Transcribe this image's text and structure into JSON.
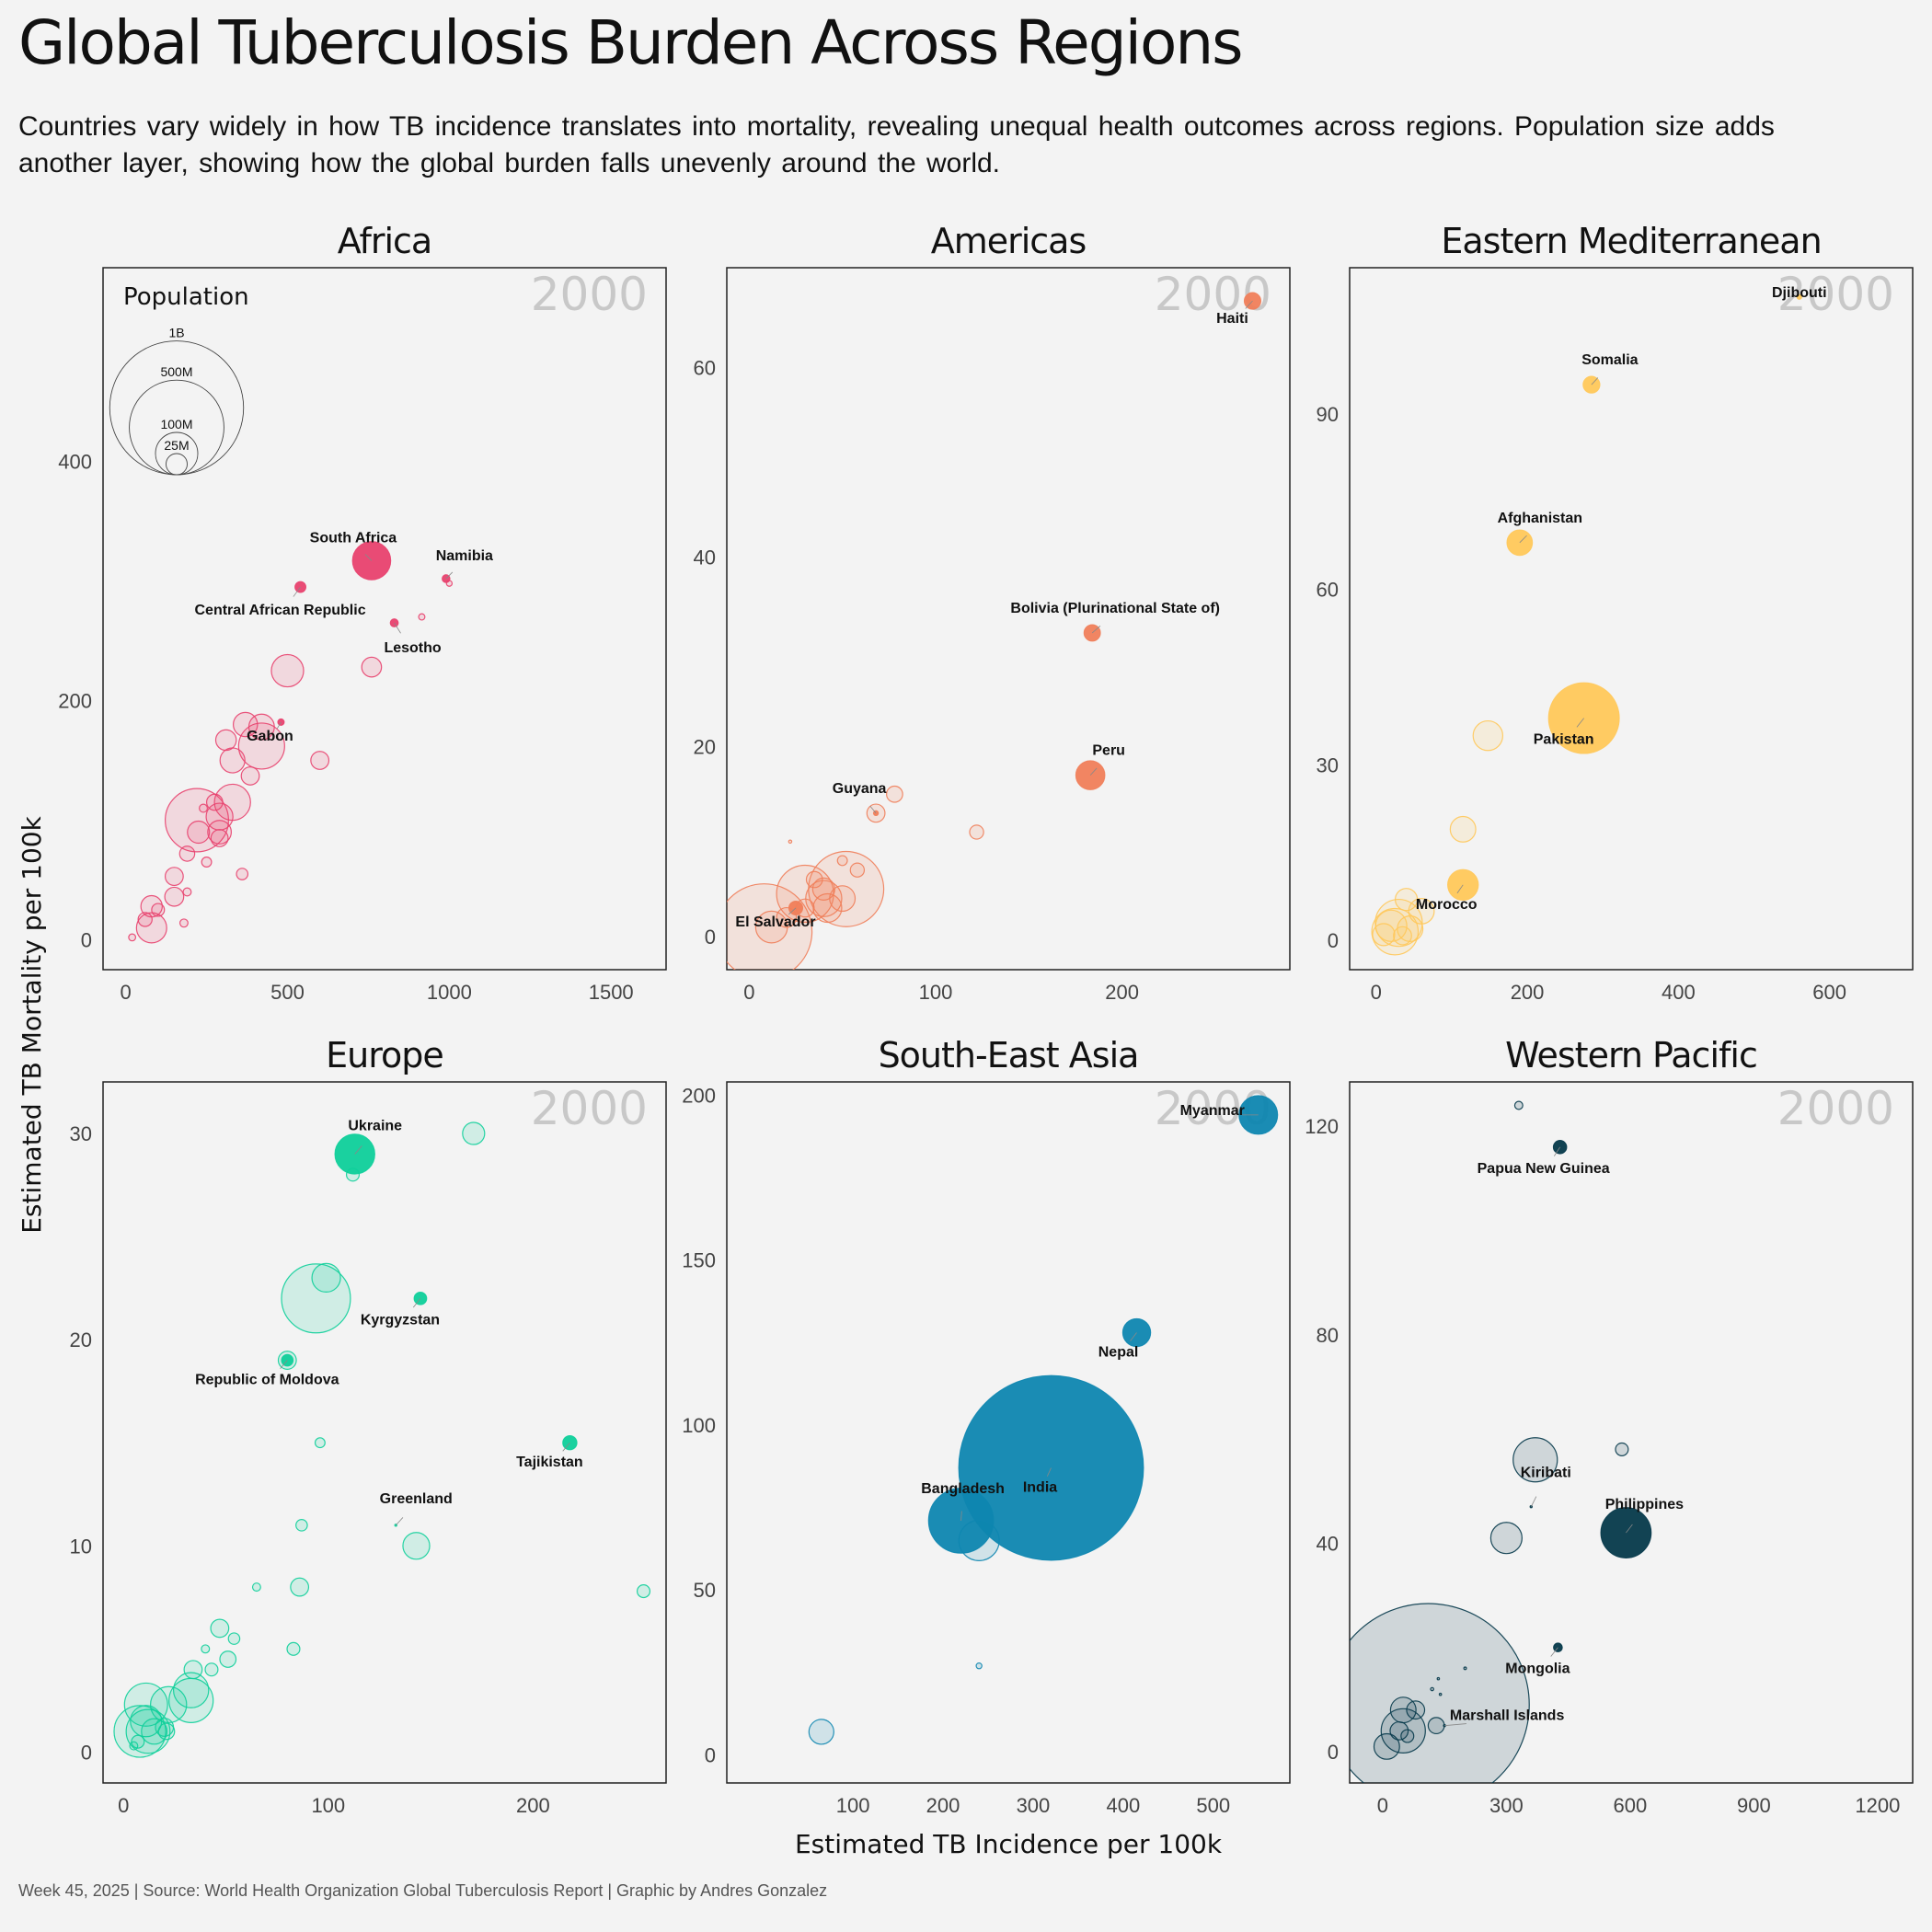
{
  "header": {
    "title": "Global Tuberculosis Burden Across Regions",
    "subtitle": "Countries vary widely in how TB incidence translates into mortality, revealing unequal health outcomes across regions. Population size adds another layer, showing how the global burden falls unevenly around the world."
  },
  "caption": "Week 45, 2025 | Source: World Health Organization Global Tuberculosis Report | Graphic by Andres Gonzalez",
  "chart_data": {
    "type": "scatter",
    "xlabel": "Estimated TB Incidence per 100k",
    "ylabel": "Estimated TB Mortality per 100k",
    "year_label": "2000",
    "legend": {
      "title": "Population",
      "entries": [
        {
          "label": "1B",
          "value": 1000
        },
        {
          "label": "500M",
          "value": 500
        },
        {
          "label": "100M",
          "value": 100
        },
        {
          "label": "25M",
          "value": 25
        }
      ]
    },
    "panels": [
      {
        "name": "Africa",
        "color": "#e8416e",
        "xlim": [
          -70,
          1670
        ],
        "ylim": [
          -25,
          562
        ],
        "xticks": [
          0,
          500,
          1000,
          1500
        ],
        "yticks": [
          0,
          200,
          400
        ],
        "points": [
          {
            "x": 760,
            "y": 317,
            "pop": 45,
            "label": "South Africa",
            "hi": true
          },
          {
            "x": 990,
            "y": 302,
            "pop": 1.9,
            "label": "Namibia",
            "hi": true
          },
          {
            "x": 540,
            "y": 295,
            "pop": 3.7,
            "label": "Central African Republic",
            "hi": true
          },
          {
            "x": 830,
            "y": 265,
            "pop": 2,
            "label": "Lesotho",
            "hi": true
          },
          {
            "x": 480,
            "y": 182,
            "pop": 1.3,
            "label": "Gabon",
            "hi": true
          },
          {
            "x": 1000,
            "y": 298,
            "pop": 1
          },
          {
            "x": 915,
            "y": 270,
            "pop": 1.2
          },
          {
            "x": 760,
            "y": 228,
            "pop": 12
          },
          {
            "x": 500,
            "y": 225,
            "pop": 32
          },
          {
            "x": 420,
            "y": 178,
            "pop": 20
          },
          {
            "x": 370,
            "y": 180,
            "pop": 18
          },
          {
            "x": 420,
            "y": 162,
            "pop": 65
          },
          {
            "x": 310,
            "y": 167,
            "pop": 13
          },
          {
            "x": 330,
            "y": 150,
            "pop": 19
          },
          {
            "x": 600,
            "y": 150,
            "pop": 10
          },
          {
            "x": 385,
            "y": 137,
            "pop": 10
          },
          {
            "x": 275,
            "y": 115,
            "pop": 8
          },
          {
            "x": 330,
            "y": 115,
            "pop": 40
          },
          {
            "x": 290,
            "y": 103,
            "pop": 22
          },
          {
            "x": 220,
            "y": 100,
            "pop": 123
          },
          {
            "x": 290,
            "y": 90,
            "pop": 17
          },
          {
            "x": 290,
            "y": 85,
            "pop": 9
          },
          {
            "x": 225,
            "y": 90,
            "pop": 15
          },
          {
            "x": 240,
            "y": 110,
            "pop": 2
          },
          {
            "x": 190,
            "y": 72,
            "pop": 7
          },
          {
            "x": 250,
            "y": 65,
            "pop": 3
          },
          {
            "x": 360,
            "y": 55,
            "pop": 4
          },
          {
            "x": 150,
            "y": 53,
            "pop": 10
          },
          {
            "x": 190,
            "y": 40,
            "pop": 2
          },
          {
            "x": 150,
            "y": 36,
            "pop": 11
          },
          {
            "x": 80,
            "y": 28,
            "pop": 14
          },
          {
            "x": 100,
            "y": 25,
            "pop": 5
          },
          {
            "x": 60,
            "y": 17,
            "pop": 6
          },
          {
            "x": 80,
            "y": 10,
            "pop": 28
          },
          {
            "x": 180,
            "y": 14,
            "pop": 2
          },
          {
            "x": 20,
            "y": 2,
            "pop": 1.5
          }
        ]
      },
      {
        "name": "Americas",
        "color": "#f07e5a",
        "xlim": [
          -12,
          290
        ],
        "ylim": [
          -3.5,
          70.5
        ],
        "xticks": [
          0,
          100,
          200
        ],
        "yticks": [
          0,
          20,
          40,
          60
        ],
        "points": [
          {
            "x": 270,
            "y": 67,
            "pop": 8.5,
            "label": "Haiti",
            "hi": true
          },
          {
            "x": 184,
            "y": 32,
            "pop": 8.3,
            "label": "Bolivia (Plurinational State of)",
            "hi": true
          },
          {
            "x": 183,
            "y": 17,
            "pop": 26,
            "label": "Peru",
            "hi": true
          },
          {
            "x": 68,
            "y": 13,
            "pop": 0.75,
            "label": "Guyana",
            "hi": true
          },
          {
            "x": 25,
            "y": 3,
            "pop": 5.9,
            "label": "El Salvador",
            "hi": true
          },
          {
            "x": 78,
            "y": 15,
            "pop": 8
          },
          {
            "x": 68,
            "y": 13,
            "pop": 10
          },
          {
            "x": 122,
            "y": 11,
            "pop": 6
          },
          {
            "x": 22,
            "y": 10,
            "pop": 0.3
          },
          {
            "x": 50,
            "y": 8,
            "pop": 3
          },
          {
            "x": 58,
            "y": 7,
            "pop": 6
          },
          {
            "x": 52,
            "y": 5,
            "pop": 174
          },
          {
            "x": 30,
            "y": 4.5,
            "pop": 100
          },
          {
            "x": 40,
            "y": 5,
            "pop": 15
          },
          {
            "x": 40,
            "y": 4,
            "pop": 40
          },
          {
            "x": 30,
            "y": 3,
            "pop": 10
          },
          {
            "x": 20,
            "y": 2,
            "pop": 12
          },
          {
            "x": 42,
            "y": 3,
            "pop": 25
          },
          {
            "x": 8,
            "y": 0.5,
            "pop": 282
          },
          {
            "x": 12,
            "y": 1,
            "pop": 31
          },
          {
            "x": 35,
            "y": 6,
            "pop": 8
          },
          {
            "x": 50,
            "y": 4,
            "pop": 20
          }
        ]
      },
      {
        "name": "Eastern Mediterranean",
        "color": "#ffc85a",
        "xlim": [
          -35,
          710
        ],
        "ylim": [
          -5,
          115
        ],
        "xticks": [
          0,
          200,
          400,
          600
        ],
        "yticks": [
          0,
          30,
          60,
          90
        ],
        "points": [
          {
            "x": 560,
            "y": 110,
            "pop": 0.7,
            "label": "Djibouti",
            "hi": true
          },
          {
            "x": 285,
            "y": 95,
            "pop": 8.7,
            "label": "Somalia",
            "hi": true
          },
          {
            "x": 190,
            "y": 68,
            "pop": 20,
            "label": "Afghanistan",
            "hi": true
          },
          {
            "x": 275,
            "y": 38,
            "pop": 154,
            "label": "Pakistan",
            "hi": true
          },
          {
            "x": 115,
            "y": 9.5,
            "pop": 29,
            "label": "Morocco",
            "hi": true
          },
          {
            "x": 148,
            "y": 35,
            "pop": 27
          },
          {
            "x": 115,
            "y": 19,
            "pop": 20
          },
          {
            "x": 60,
            "y": 5,
            "pop": 20
          },
          {
            "x": 40,
            "y": 7,
            "pop": 15
          },
          {
            "x": 30,
            "y": 3,
            "pop": 68
          },
          {
            "x": 25,
            "y": 1.5,
            "pop": 66
          },
          {
            "x": 20,
            "y": 2.5,
            "pop": 30
          },
          {
            "x": 10,
            "y": 1,
            "pop": 15
          },
          {
            "x": 45,
            "y": 2,
            "pop": 20
          },
          {
            "x": 35,
            "y": 0.8,
            "pop": 10
          }
        ]
      },
      {
        "name": "Europe",
        "color": "#0ecf9a",
        "xlim": [
          -10,
          265
        ],
        "ylim": [
          -1.5,
          32.5
        ],
        "xticks": [
          0,
          100,
          200
        ],
        "yticks": [
          0,
          10,
          20,
          30
        ],
        "points": [
          {
            "x": 113,
            "y": 29,
            "pop": 49,
            "label": "Ukraine",
            "hi": true
          },
          {
            "x": 145,
            "y": 22,
            "pop": 4.9,
            "label": "Kyrgyzstan",
            "hi": true
          },
          {
            "x": 80,
            "y": 19,
            "pop": 4.2,
            "label": "Republic of Moldova",
            "hi": true
          },
          {
            "x": 218,
            "y": 15,
            "pop": 6.2,
            "label": "Tajikistan",
            "hi": true
          },
          {
            "x": 133,
            "y": 11,
            "pop": 0.06,
            "label": "Greenland",
            "hi": true
          },
          {
            "x": 171,
            "y": 30,
            "pop": 15
          },
          {
            "x": 112,
            "y": 28,
            "pop": 5
          },
          {
            "x": 99,
            "y": 23,
            "pop": 25
          },
          {
            "x": 94,
            "y": 22,
            "pop": 146
          },
          {
            "x": 80,
            "y": 19,
            "pop": 10
          },
          {
            "x": 96,
            "y": 15,
            "pop": 3
          },
          {
            "x": 87,
            "y": 11,
            "pop": 4
          },
          {
            "x": 143,
            "y": 10,
            "pop": 22
          },
          {
            "x": 86,
            "y": 8,
            "pop": 10
          },
          {
            "x": 65,
            "y": 8,
            "pop": 2
          },
          {
            "x": 254,
            "y": 7.8,
            "pop": 5
          },
          {
            "x": 47,
            "y": 6,
            "pop": 10
          },
          {
            "x": 54,
            "y": 5.5,
            "pop": 4
          },
          {
            "x": 83,
            "y": 5,
            "pop": 5
          },
          {
            "x": 40,
            "y": 5,
            "pop": 2
          },
          {
            "x": 51,
            "y": 4.5,
            "pop": 8
          },
          {
            "x": 43,
            "y": 4,
            "pop": 5
          },
          {
            "x": 34,
            "y": 4,
            "pop": 10
          },
          {
            "x": 33,
            "y": 3,
            "pop": 38
          },
          {
            "x": 33,
            "y": 2.5,
            "pop": 60
          },
          {
            "x": 22,
            "y": 2.3,
            "pop": 40
          },
          {
            "x": 11,
            "y": 2.3,
            "pop": 57
          },
          {
            "x": 11,
            "y": 1.5,
            "pop": 30
          },
          {
            "x": 8,
            "y": 1,
            "pop": 82
          },
          {
            "x": 12,
            "y": 1,
            "pop": 59
          },
          {
            "x": 20,
            "y": 1.2,
            "pop": 10
          },
          {
            "x": 15,
            "y": 1,
            "pop": 20
          },
          {
            "x": 21,
            "y": 1,
            "pop": 8
          },
          {
            "x": 7,
            "y": 0.5,
            "pop": 5
          },
          {
            "x": 5,
            "y": 0.3,
            "pop": 2
          }
        ]
      },
      {
        "name": "South-East Asia",
        "color": "#0e86b0",
        "xlim": [
          -40,
          585
        ],
        "ylim": [
          -8.5,
          204
        ],
        "xticks": [
          100,
          200,
          300,
          400,
          500
        ],
        "yticks": [
          0,
          50,
          100,
          150,
          200
        ],
        "points": [
          {
            "x": 550,
            "y": 194,
            "pop": 46,
            "label": "Myanmar",
            "hi": true
          },
          {
            "x": 415,
            "y": 128,
            "pop": 24,
            "label": "Nepal",
            "hi": true
          },
          {
            "x": 320,
            "y": 87,
            "pop": 1050,
            "label": "India",
            "hi": true
          },
          {
            "x": 220,
            "y": 71,
            "pop": 130,
            "label": "Bangladesh",
            "hi": true
          },
          {
            "x": 240,
            "y": 65,
            "pop": 50
          },
          {
            "x": 240,
            "y": 27,
            "pop": 1
          },
          {
            "x": 65,
            "y": 7,
            "pop": 19
          }
        ]
      },
      {
        "name": "Western Pacific",
        "color": "#05394a",
        "xlim": [
          -80,
          1285
        ],
        "ylim": [
          -6,
          128.5
        ],
        "xticks": [
          0,
          300,
          600,
          900,
          1200
        ],
        "yticks": [
          0,
          40,
          80,
          120
        ],
        "points": [
          {
            "x": 430,
            "y": 116,
            "pop": 5.5,
            "label": "Papua New Guinea",
            "hi": true
          },
          {
            "x": 360,
            "y": 47,
            "pop": 0.08,
            "label": "Kiribati",
            "hi": true
          },
          {
            "x": 590,
            "y": 42,
            "pop": 78,
            "label": "Philippines",
            "hi": true
          },
          {
            "x": 425,
            "y": 20,
            "pop": 2.4,
            "label": "Mongolia",
            "hi": true
          },
          {
            "x": 150,
            "y": 5,
            "pop": 0.05,
            "label": "Marshall Islands",
            "hi": true
          },
          {
            "x": 330,
            "y": 124,
            "pop": 2
          },
          {
            "x": 370,
            "y": 56,
            "pop": 60
          },
          {
            "x": 580,
            "y": 58,
            "pop": 5
          },
          {
            "x": 300,
            "y": 41,
            "pop": 30
          },
          {
            "x": 110,
            "y": 9,
            "pop": 1260
          },
          {
            "x": 50,
            "y": 4,
            "pop": 60
          },
          {
            "x": 50,
            "y": 8,
            "pop": 20
          },
          {
            "x": 80,
            "y": 8,
            "pop": 10
          },
          {
            "x": 40,
            "y": 4,
            "pop": 10
          },
          {
            "x": 10,
            "y": 1,
            "pop": 20
          },
          {
            "x": 60,
            "y": 3,
            "pop": 5
          },
          {
            "x": 130,
            "y": 5,
            "pop": 8
          },
          {
            "x": 120,
            "y": 12,
            "pop": 0.3
          },
          {
            "x": 200,
            "y": 16,
            "pop": 0.2
          },
          {
            "x": 135,
            "y": 14,
            "pop": 0.1
          },
          {
            "x": 140,
            "y": 11,
            "pop": 0.1
          }
        ]
      }
    ]
  }
}
